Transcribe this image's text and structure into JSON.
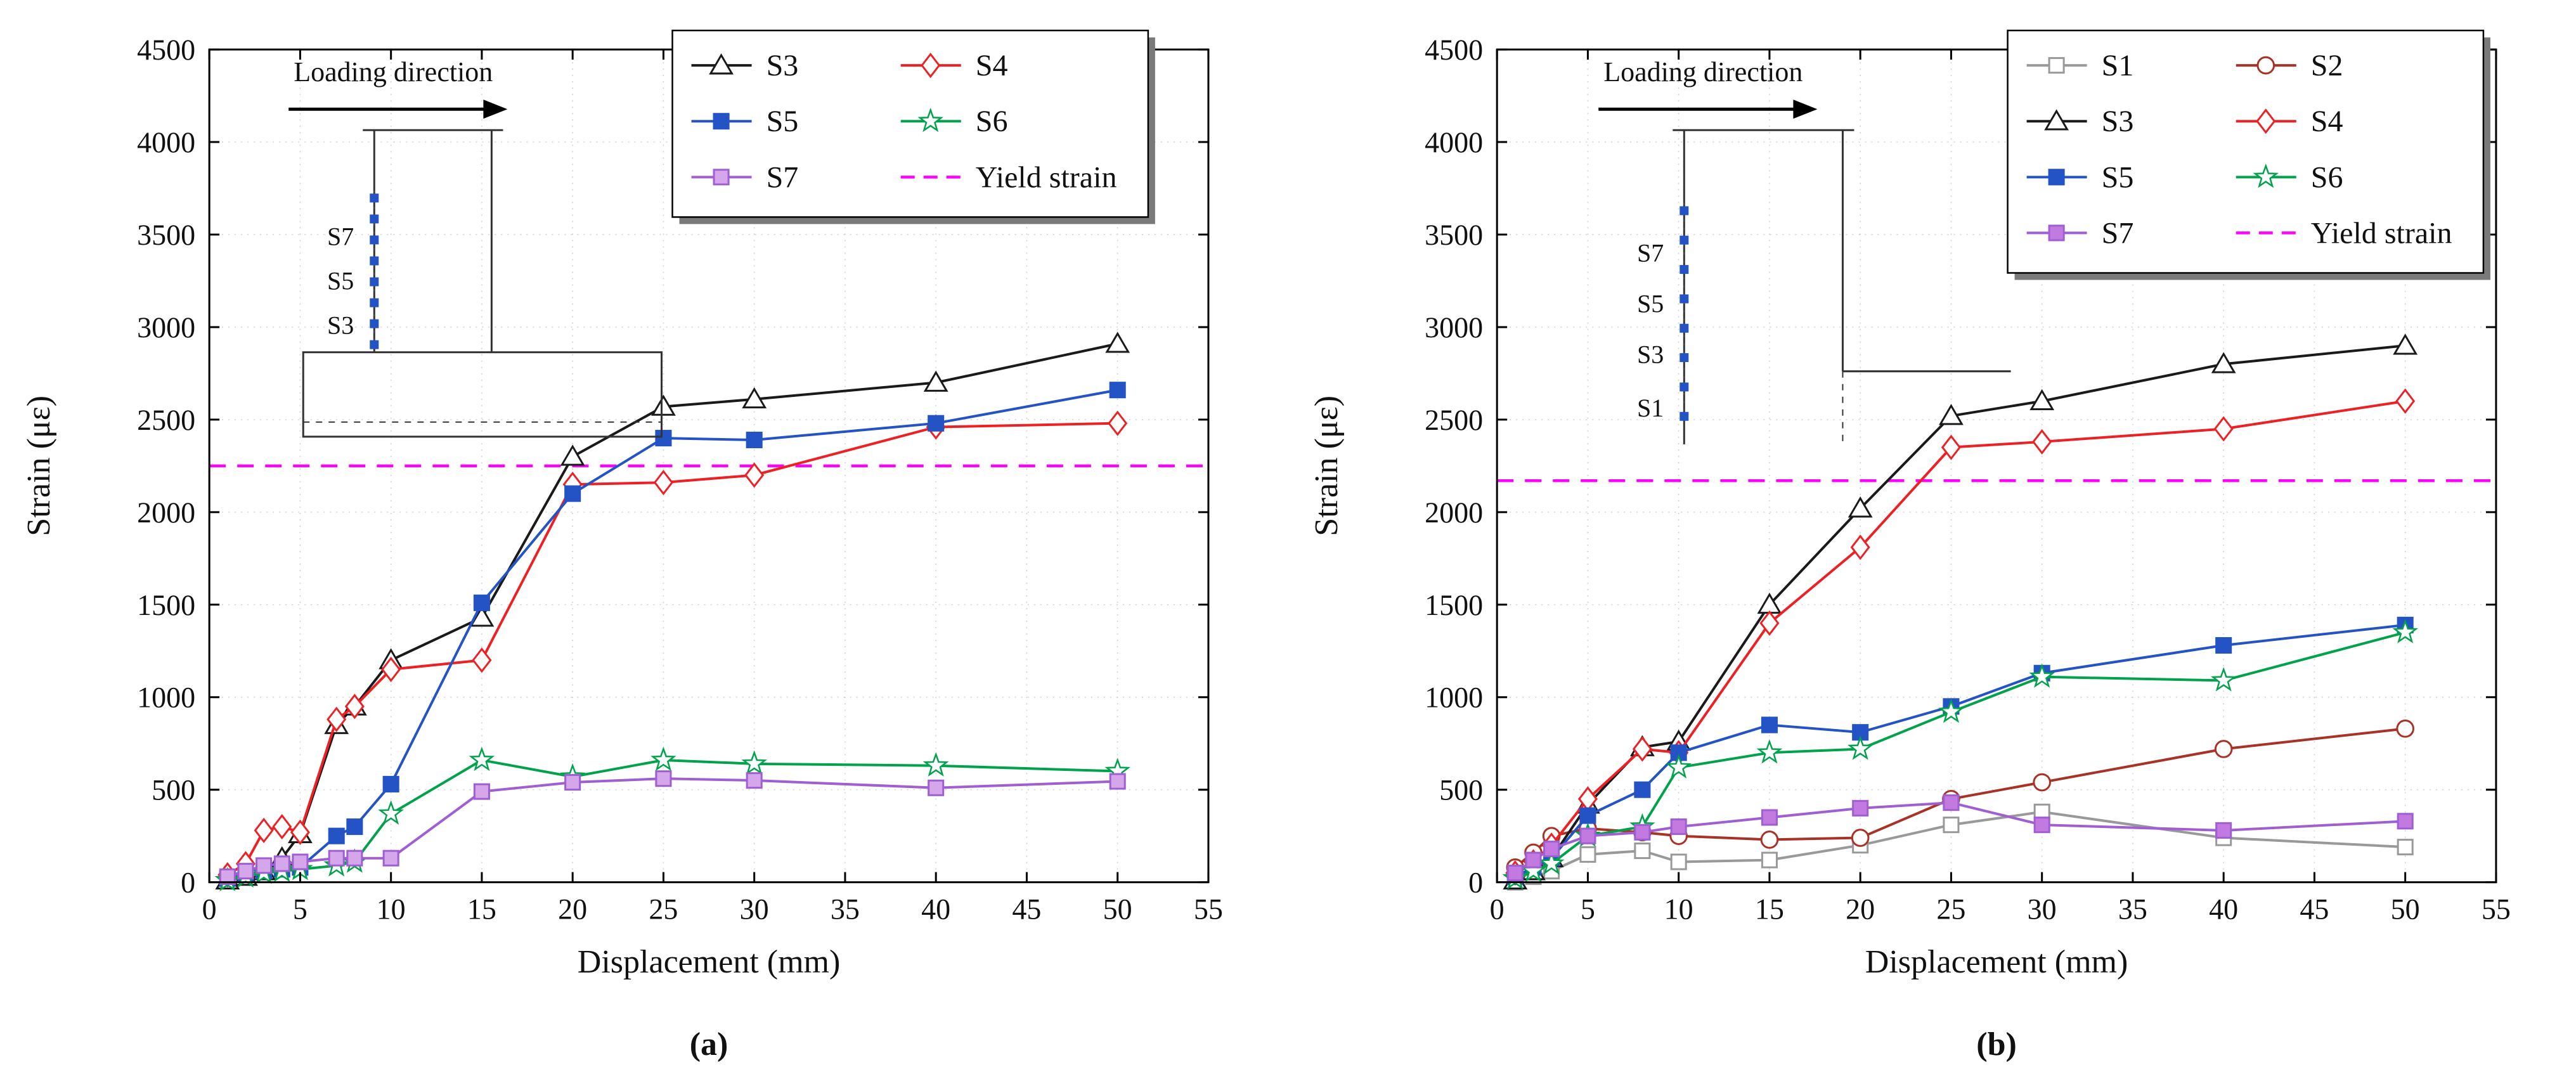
{
  "figure": {
    "background": "#ffffff"
  },
  "chart_data": [
    {
      "id": "a",
      "type": "line",
      "caption": "(a)",
      "xlabel": "Displacement (mm)",
      "ylabel": "Strain (με)",
      "xlim": [
        0,
        55
      ],
      "ylim": [
        0,
        4500
      ],
      "xticks": [
        0,
        5,
        10,
        15,
        20,
        25,
        30,
        35,
        40,
        45,
        50,
        55
      ],
      "yticks": [
        0,
        500,
        1000,
        1500,
        2000,
        2500,
        3000,
        3500,
        4000,
        4500
      ],
      "grid": true,
      "legend": {
        "position": "top-right",
        "columns": 2,
        "offset_right": 95,
        "entries": [
          "S3",
          "S4",
          "S5",
          "S6",
          "S7",
          "Yield strain"
        ]
      },
      "yield_line": {
        "label": "Yield strain",
        "value": 2250,
        "color": "#ff00ff"
      },
      "inset": {
        "title": "Loading direction",
        "type": "column-on-footing",
        "gauge_labels": [
          "S7",
          "S5",
          "S3"
        ],
        "gauge_color": "#2353c4"
      },
      "series": [
        {
          "name": "S3",
          "color": "#1a1a1a",
          "marker": "triangle-open",
          "x": [
            1,
            2,
            3,
            4,
            5,
            7,
            8,
            10,
            15,
            20,
            25,
            30,
            40,
            50
          ],
          "y": [
            10,
            30,
            60,
            130,
            260,
            850,
            950,
            1200,
            1430,
            2300,
            2570,
            2610,
            2700,
            2910
          ]
        },
        {
          "name": "S4",
          "color": "#ed2024",
          "marker": "diamond-open",
          "x": [
            1,
            2,
            3,
            4,
            5,
            7,
            8,
            10,
            15,
            20,
            25,
            30,
            40,
            50
          ],
          "y": [
            40,
            100,
            280,
            300,
            270,
            880,
            950,
            1150,
            1200,
            2150,
            2160,
            2200,
            2460,
            2480
          ]
        },
        {
          "name": "S5",
          "color": "#2353c4",
          "marker": "square-filled",
          "x": [
            1,
            2,
            3,
            4,
            5,
            7,
            8,
            10,
            15,
            20,
            25,
            30,
            40,
            50
          ],
          "y": [
            20,
            40,
            60,
            70,
            80,
            250,
            300,
            530,
            1510,
            2100,
            2400,
            2390,
            2480,
            2660
          ]
        },
        {
          "name": "S6",
          "color": "#00a24b",
          "marker": "star-open",
          "x": [
            1,
            2,
            3,
            4,
            5,
            7,
            8,
            10,
            15,
            20,
            25,
            30,
            40,
            50
          ],
          "y": [
            10,
            30,
            50,
            60,
            70,
            90,
            110,
            370,
            660,
            570,
            660,
            640,
            630,
            600
          ]
        },
        {
          "name": "S7",
          "color": "#9f5fd2",
          "marker": "square-filled",
          "marker_fill": "#d5a6ea",
          "x": [
            1,
            2,
            3,
            4,
            5,
            7,
            8,
            10,
            15,
            20,
            25,
            30,
            40,
            50
          ],
          "y": [
            30,
            60,
            90,
            100,
            110,
            130,
            130,
            130,
            490,
            540,
            560,
            550,
            510,
            545
          ]
        }
      ]
    },
    {
      "id": "b",
      "type": "line",
      "caption": "(b)",
      "xlabel": "Displacement (mm)",
      "ylabel": "Strain (με)",
      "xlim": [
        0,
        55
      ],
      "ylim": [
        0,
        4500
      ],
      "xticks": [
        0,
        5,
        10,
        15,
        20,
        25,
        30,
        35,
        40,
        45,
        50,
        55
      ],
      "yticks": [
        0,
        500,
        1000,
        1500,
        2000,
        2500,
        3000,
        3500,
        4000,
        4500
      ],
      "grid": true,
      "legend": {
        "position": "top-right",
        "columns": 2,
        "offset_right": 20,
        "entries": [
          "S1",
          "S2",
          "S3",
          "S4",
          "S5",
          "S6",
          "S7",
          "Yield strain"
        ]
      },
      "yield_line": {
        "label": "Yield strain",
        "value": 2170,
        "color": "#ff00ff"
      },
      "inset": {
        "title": "Loading direction",
        "type": "embedded-column",
        "gauge_labels": [
          "S7",
          "S5",
          "S3",
          "S1"
        ],
        "gauge_color": "#2353c4"
      },
      "series": [
        {
          "name": "S1",
          "color": "#999999",
          "marker": "square-open",
          "x": [
            1,
            2,
            3,
            5,
            8,
            10,
            15,
            20,
            25,
            30,
            40,
            50
          ],
          "y": [
            0,
            30,
            60,
            150,
            170,
            110,
            120,
            200,
            310,
            380,
            240,
            190
          ]
        },
        {
          "name": "S2",
          "color": "#a93226",
          "marker": "circle-open",
          "x": [
            1,
            2,
            3,
            5,
            8,
            10,
            15,
            20,
            25,
            30,
            40,
            50
          ],
          "y": [
            80,
            160,
            250,
            290,
            270,
            250,
            230,
            240,
            450,
            540,
            720,
            830
          ]
        },
        {
          "name": "S3",
          "color": "#1a1a1a",
          "marker": "triangle-open",
          "x": [
            1,
            2,
            3,
            5,
            8,
            10,
            15,
            20,
            25,
            30,
            40,
            50
          ],
          "y": [
            10,
            60,
            130,
            420,
            730,
            760,
            1500,
            2020,
            2520,
            2600,
            2800,
            2900
          ]
        },
        {
          "name": "S4",
          "color": "#ed2024",
          "marker": "diamond-open",
          "x": [
            1,
            2,
            3,
            5,
            8,
            10,
            15,
            20,
            25,
            30,
            40,
            50
          ],
          "y": [
            50,
            110,
            200,
            450,
            720,
            700,
            1400,
            1810,
            2350,
            2380,
            2450,
            2600
          ]
        },
        {
          "name": "S5",
          "color": "#2353c4",
          "marker": "square-filled",
          "x": [
            1,
            2,
            3,
            5,
            8,
            10,
            15,
            20,
            25,
            30,
            40,
            50
          ],
          "y": [
            30,
            80,
            130,
            360,
            500,
            700,
            850,
            810,
            950,
            1130,
            1280,
            1390
          ]
        },
        {
          "name": "S6",
          "color": "#00a24b",
          "marker": "star-open",
          "x": [
            1,
            2,
            3,
            5,
            8,
            10,
            15,
            20,
            25,
            30,
            40,
            50
          ],
          "y": [
            20,
            60,
            100,
            250,
            300,
            620,
            700,
            720,
            920,
            1110,
            1090,
            1350
          ]
        },
        {
          "name": "S7",
          "color": "#9f5fd2",
          "marker": "square-filled",
          "marker_fill": "#c27ae0",
          "x": [
            1,
            2,
            3,
            5,
            8,
            10,
            15,
            20,
            25,
            30,
            40,
            50
          ],
          "y": [
            50,
            120,
            180,
            250,
            270,
            300,
            350,
            400,
            430,
            310,
            280,
            330
          ]
        }
      ]
    }
  ]
}
